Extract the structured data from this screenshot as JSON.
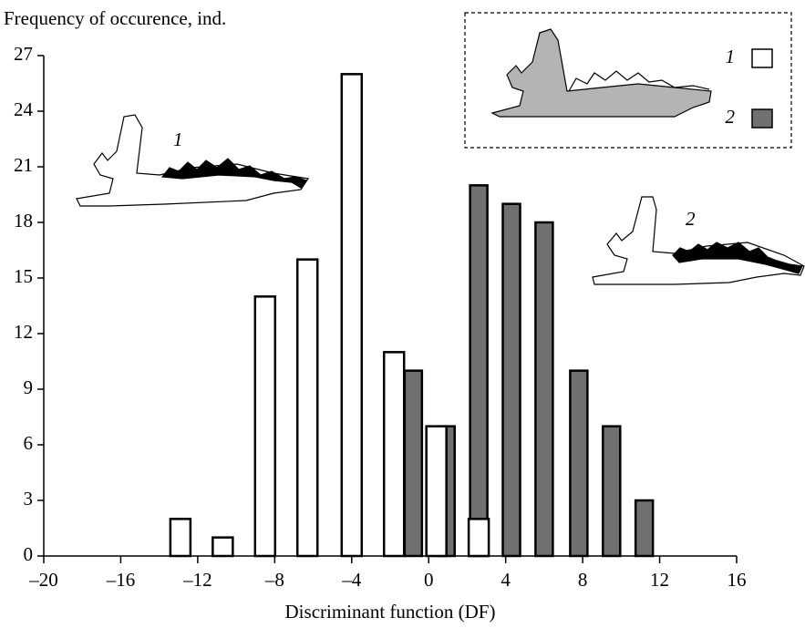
{
  "chart_data": {
    "type": "bar",
    "y_label": "Frequency of occurence, ind.",
    "x_label": "Discriminant function (DF)",
    "xlim": [
      -20,
      16
    ],
    "xticks": [
      {
        "value": -20,
        "label": "–20"
      },
      {
        "value": -16,
        "label": "–16"
      },
      {
        "value": -12,
        "label": "–12"
      },
      {
        "value": -8,
        "label": "–8"
      },
      {
        "value": -4,
        "label": "–4"
      },
      0,
      4,
      8,
      12,
      16
    ],
    "ylim": [
      0,
      27
    ],
    "yticks": [
      0,
      3,
      6,
      9,
      12,
      15,
      18,
      21,
      24,
      27
    ],
    "series": [
      {
        "name": "1",
        "color": "#ffffff",
        "x": [
          -12.9,
          -10.7,
          -8.5,
          -6.3,
          -4.0,
          -1.8,
          0.4,
          2.6
        ],
        "values": [
          2,
          1,
          14,
          16,
          26,
          11,
          7,
          2
        ]
      },
      {
        "name": "2",
        "color": "#707070",
        "x": [
          -0.8,
          0.9,
          2.6,
          4.3,
          6.0,
          7.8,
          9.5,
          11.2
        ],
        "values": [
          10,
          7,
          20,
          19,
          18,
          10,
          7,
          3
        ]
      }
    ],
    "figure_labels": [
      "1",
      "2"
    ]
  }
}
